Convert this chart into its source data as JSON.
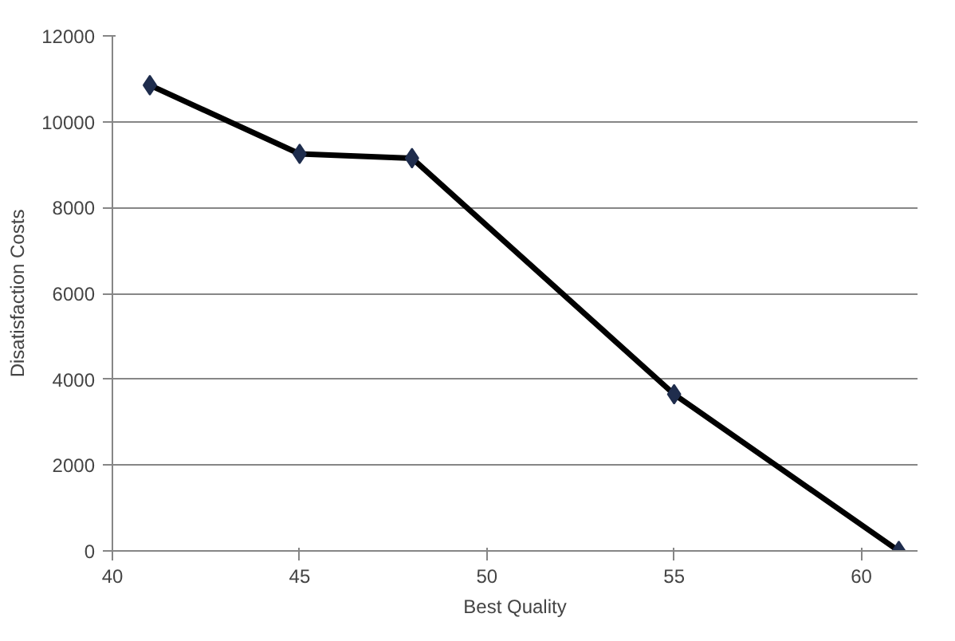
{
  "chart_data": {
    "type": "line",
    "xlabel": "Best Quality",
    "ylabel": "Disatisfaction Costs",
    "x": [
      41,
      45,
      48,
      55,
      61
    ],
    "series": [
      {
        "color": "#000000",
        "values": [
          10850,
          9250,
          9150,
          3650,
          0
        ]
      }
    ],
    "marker": "diamond",
    "line_style": "solid",
    "xlim": [
      40,
      61.5
    ],
    "xticks": [
      40,
      45,
      50,
      55,
      60
    ],
    "ylim": [
      0,
      12000
    ],
    "yticks": [
      0,
      2000,
      4000,
      6000,
      8000,
      10000,
      12000
    ],
    "grid": "y"
  }
}
